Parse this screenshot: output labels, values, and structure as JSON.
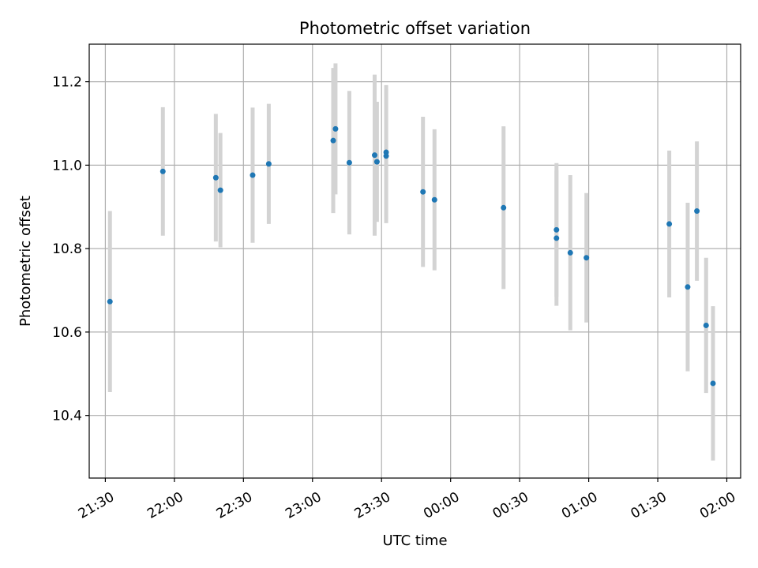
{
  "chart_data": {
    "type": "scatter",
    "title": "Photometric offset variation",
    "xlabel": "UTC time",
    "ylabel": "Photometric offset",
    "xlim": [
      "21:23",
      "02:06"
    ],
    "ylim": [
      10.25,
      11.29
    ],
    "x_ticks": [
      "21:30",
      "22:00",
      "22:30",
      "23:00",
      "23:30",
      "00:00",
      "00:30",
      "01:00",
      "01:30",
      "02:00"
    ],
    "y_ticks": [
      "10.4",
      "10.6",
      "10.8",
      "11.0",
      "11.2"
    ],
    "grid": true,
    "point_color": "#1f77b4",
    "errorbar_color": "#d3d3d3",
    "series": [
      {
        "points": [
          {
            "x": "21:32",
            "y": 10.673,
            "err": 0.217
          },
          {
            "x": "21:55",
            "y": 10.985,
            "err": 0.154
          },
          {
            "x": "22:18",
            "y": 10.97,
            "err": 0.153
          },
          {
            "x": "22:20",
            "y": 10.94,
            "err": 0.137
          },
          {
            "x": "22:34",
            "y": 10.976,
            "err": 0.162
          },
          {
            "x": "22:41",
            "y": 11.003,
            "err": 0.144
          },
          {
            "x": "23:09",
            "y": 11.059,
            "err": 0.174
          },
          {
            "x": "23:10",
            "y": 11.087,
            "err": 0.157
          },
          {
            "x": "23:16",
            "y": 11.006,
            "err": 0.172
          },
          {
            "x": "23:27",
            "y": 11.024,
            "err": 0.193
          },
          {
            "x": "23:28",
            "y": 11.008,
            "err": 0.144
          },
          {
            "x": "23:32",
            "y": 11.031,
            "err": 0.161
          },
          {
            "x": "23:32",
            "y": 11.022,
            "err": 0.161
          },
          {
            "x": "23:48",
            "y": 10.936,
            "err": 0.18
          },
          {
            "x": "23:53",
            "y": 10.917,
            "err": 0.169
          },
          {
            "x": "00:23",
            "y": 10.898,
            "err": 0.195
          },
          {
            "x": "00:46",
            "y": 10.825,
            "err": 0.162
          },
          {
            "x": "00:46",
            "y": 10.845,
            "err": 0.16
          },
          {
            "x": "00:52",
            "y": 10.79,
            "err": 0.186
          },
          {
            "x": "00:59",
            "y": 10.778,
            "err": 0.155
          },
          {
            "x": "01:47",
            "y": 10.89,
            "err": 0.167
          },
          {
            "x": "01:35",
            "y": 10.859,
            "err": 0.176
          },
          {
            "x": "01:43",
            "y": 10.708,
            "err": 0.202
          },
          {
            "x": "01:51",
            "y": 10.616,
            "err": 0.162
          },
          {
            "x": "01:54",
            "y": 10.477,
            "err": 0.185
          }
        ]
      }
    ]
  }
}
